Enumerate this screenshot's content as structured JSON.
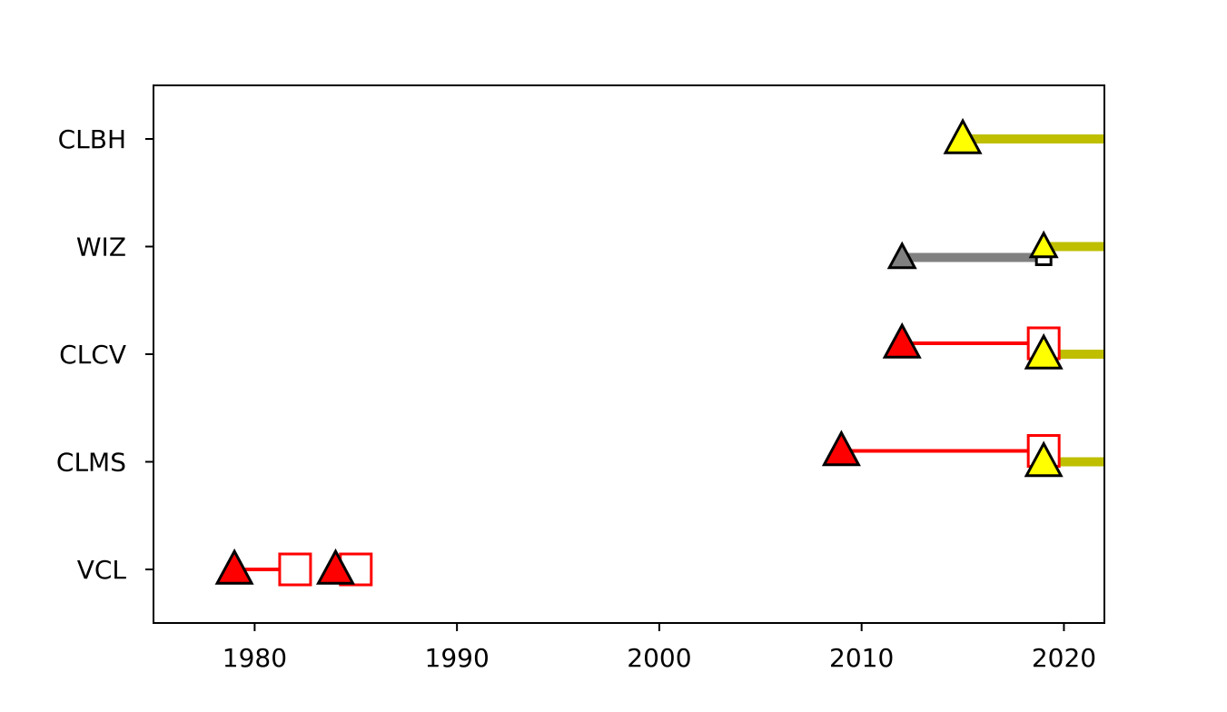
{
  "chart_data": {
    "type": "timeline",
    "title": "",
    "xlabel": "",
    "ylabel": "",
    "xlim": [
      1975,
      2022
    ],
    "x_ticks": [
      1980,
      1990,
      2000,
      2010,
      2020
    ],
    "x_tick_labels": [
      "1980",
      "1990",
      "2000",
      "2010",
      "2020"
    ],
    "categories": [
      "VCL",
      "CLMS",
      "CLCV",
      "WIZ",
      "CLBH"
    ],
    "grid": false,
    "legend": "none",
    "colors": {
      "red": "#ff0000",
      "yellow": "#ffff00",
      "olive": "#bfbf00",
      "gray": "#808080",
      "black": "#000000"
    },
    "segments": [
      {
        "row": "VCL",
        "x_start": 1979,
        "x_end": 1982,
        "color": "#ff0000",
        "style": "thin"
      },
      {
        "row": "VCL",
        "x_start": 1984,
        "x_end": 1985,
        "color": "#ff0000",
        "style": "thin"
      },
      {
        "row": "CLMS",
        "x_start": 2009,
        "x_end": 2019,
        "color": "#ff0000",
        "style": "thin",
        "offset": "above"
      },
      {
        "row": "CLMS",
        "x_start": 2019,
        "x_end": 2022,
        "color": "#bfbf00",
        "style": "thick"
      },
      {
        "row": "CLCV",
        "x_start": 2012,
        "x_end": 2019,
        "color": "#ff0000",
        "style": "thin",
        "offset": "above"
      },
      {
        "row": "CLCV",
        "x_start": 2019,
        "x_end": 2022,
        "color": "#bfbf00",
        "style": "thick"
      },
      {
        "row": "WIZ",
        "x_start": 2012,
        "x_end": 2019,
        "color": "#808080",
        "style": "thick",
        "offset": "below"
      },
      {
        "row": "WIZ",
        "x_start": 2019,
        "x_end": 2022,
        "color": "#bfbf00",
        "style": "thick"
      },
      {
        "row": "CLBH",
        "x_start": 2015,
        "x_end": 2022,
        "color": "#bfbf00",
        "style": "thick"
      }
    ],
    "start_markers": [
      {
        "row": "VCL",
        "x": 1979,
        "fill": "#ff0000",
        "size": "large"
      },
      {
        "row": "VCL",
        "x": 1984,
        "fill": "#ff0000",
        "size": "large"
      },
      {
        "row": "CLMS",
        "x": 2009,
        "fill": "#ff0000",
        "size": "large",
        "offset": "above"
      },
      {
        "row": "CLMS",
        "x": 2019,
        "fill": "#ffff00",
        "size": "large"
      },
      {
        "row": "CLCV",
        "x": 2012,
        "fill": "#ff0000",
        "size": "large",
        "offset": "above"
      },
      {
        "row": "CLCV",
        "x": 2019,
        "fill": "#ffff00",
        "size": "large"
      },
      {
        "row": "WIZ",
        "x": 2012,
        "fill": "#808080",
        "size": "small",
        "offset": "below"
      },
      {
        "row": "WIZ",
        "x": 2019,
        "fill": "#ffff00",
        "size": "small"
      },
      {
        "row": "CLBH",
        "x": 2015,
        "fill": "#ffff00",
        "size": "large"
      }
    ],
    "end_markers": [
      {
        "row": "VCL",
        "x": 1982,
        "stroke": "#ff0000",
        "size": "large"
      },
      {
        "row": "VCL",
        "x": 1985,
        "stroke": "#ff0000",
        "size": "large"
      },
      {
        "row": "CLMS",
        "x": 2019,
        "stroke": "#ff0000",
        "size": "large",
        "offset": "above"
      },
      {
        "row": "CLCV",
        "x": 2019,
        "stroke": "#ff0000",
        "size": "large",
        "offset": "above"
      },
      {
        "row": "WIZ",
        "x": 2019,
        "stroke": "#000000",
        "size": "small",
        "offset": "below"
      }
    ]
  }
}
